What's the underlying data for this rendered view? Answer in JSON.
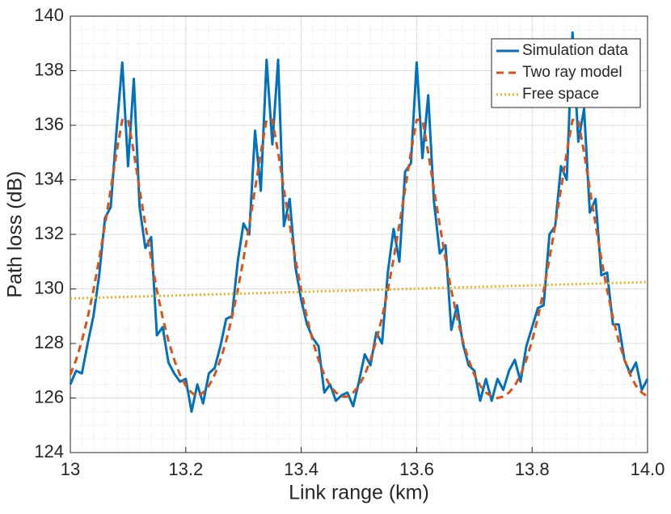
{
  "chart_data": {
    "type": "line",
    "xlabel": "Link range (km)",
    "ylabel": "Path loss (dB)",
    "x": [
      13.0,
      13.01,
      13.02,
      13.03,
      13.04,
      13.05,
      13.06,
      13.07,
      13.08,
      13.09,
      13.1,
      13.11,
      13.12,
      13.13,
      13.14,
      13.15,
      13.16,
      13.17,
      13.18,
      13.19,
      13.2,
      13.21,
      13.22,
      13.23,
      13.24,
      13.25,
      13.26,
      13.27,
      13.28,
      13.29,
      13.3,
      13.31,
      13.32,
      13.33,
      13.34,
      13.35,
      13.36,
      13.37,
      13.38,
      13.39,
      13.4,
      13.41,
      13.42,
      13.43,
      13.44,
      13.45,
      13.46,
      13.47,
      13.48,
      13.49,
      13.5,
      13.51,
      13.52,
      13.53,
      13.54,
      13.55,
      13.56,
      13.57,
      13.58,
      13.59,
      13.6,
      13.61,
      13.62,
      13.63,
      13.64,
      13.65,
      13.66,
      13.67,
      13.68,
      13.69,
      13.7,
      13.71,
      13.72,
      13.73,
      13.74,
      13.75,
      13.76,
      13.77,
      13.78,
      13.79,
      13.8,
      13.81,
      13.82,
      13.83,
      13.84,
      13.85,
      13.86,
      13.87,
      13.88,
      13.89,
      13.9,
      13.91,
      13.92,
      13.93,
      13.94,
      13.95,
      13.96,
      13.97,
      13.98,
      13.99,
      14.0
    ],
    "series": [
      {
        "name": "Simulation data",
        "color": "#0072bd",
        "style": "solid",
        "values": [
          126.5,
          127.0,
          126.9,
          128.0,
          129.0,
          130.5,
          132.6,
          133.0,
          135.8,
          138.3,
          134.5,
          137.7,
          133.0,
          131.5,
          131.9,
          128.3,
          128.6,
          127.3,
          126.9,
          126.6,
          126.7,
          125.5,
          126.5,
          125.8,
          126.9,
          127.1,
          127.9,
          128.9,
          129.0,
          131.0,
          132.4,
          132.0,
          135.8,
          133.6,
          138.4,
          135.3,
          138.4,
          132.3,
          133.3,
          130.8,
          129.6,
          128.7,
          128.2,
          127.9,
          126.2,
          126.5,
          125.9,
          126.1,
          126.2,
          125.7,
          126.6,
          127.6,
          127.2,
          128.4,
          128.0,
          130.6,
          132.2,
          131.0,
          134.3,
          134.6,
          138.3,
          134.8,
          137.1,
          133.2,
          131.3,
          131.6,
          128.5,
          129.4,
          128.0,
          127.2,
          127.0,
          125.9,
          126.7,
          125.9,
          126.7,
          126.3,
          127.0,
          127.4,
          126.6,
          127.9,
          128.6,
          129.3,
          129.4,
          132.0,
          132.3,
          134.5,
          134.0,
          139.4,
          135.4,
          136.6,
          132.8,
          133.3,
          130.5,
          130.6,
          128.7,
          128.7,
          127.4,
          126.9,
          127.3,
          126.3,
          126.7
        ]
      },
      {
        "name": "Two ray model",
        "color": "#d95319",
        "style": "dashed",
        "values": [
          126.85,
          127.4,
          128.1,
          128.95,
          129.95,
          131.1,
          132.35,
          133.65,
          135.0,
          136.2,
          136.2,
          135.0,
          133.65,
          132.35,
          131.1,
          129.95,
          128.95,
          128.1,
          127.4,
          126.85,
          126.45,
          126.2,
          126.05,
          126.2,
          126.45,
          126.85,
          127.4,
          128.1,
          128.95,
          129.95,
          131.1,
          132.35,
          133.65,
          135.0,
          136.2,
          136.2,
          135.0,
          133.65,
          132.35,
          131.1,
          129.95,
          128.95,
          128.1,
          127.4,
          126.85,
          126.45,
          126.2,
          126.05,
          126.05,
          126.2,
          126.45,
          126.85,
          127.4,
          128.1,
          128.95,
          129.95,
          131.1,
          132.35,
          133.65,
          135.0,
          136.2,
          136.2,
          135.0,
          133.65,
          132.35,
          131.1,
          129.95,
          128.95,
          128.1,
          127.4,
          126.85,
          126.45,
          126.2,
          126.05,
          126.0,
          126.05,
          126.2,
          126.45,
          126.85,
          127.4,
          128.1,
          128.95,
          129.95,
          131.1,
          132.35,
          133.65,
          135.0,
          136.2,
          136.2,
          135.0,
          133.65,
          132.35,
          131.1,
          129.95,
          128.95,
          128.1,
          127.4,
          126.85,
          126.45,
          126.2,
          126.05
        ]
      },
      {
        "name": "Free space",
        "color": "#edb120",
        "style": "dotted",
        "x": [
          13,
          14
        ],
        "values": [
          129.65,
          130.25
        ]
      }
    ],
    "xlim": [
      13,
      14
    ],
    "xticks": [
      13,
      13.2,
      13.4,
      13.6,
      13.8,
      {
        "value": 14,
        "label": "14.0"
      }
    ],
    "ylim": [
      124,
      140
    ],
    "yticks": [
      124,
      126,
      128,
      130,
      132,
      134,
      136,
      138,
      140
    ],
    "grid": true,
    "minor_grid": true,
    "legend": "upper right"
  }
}
